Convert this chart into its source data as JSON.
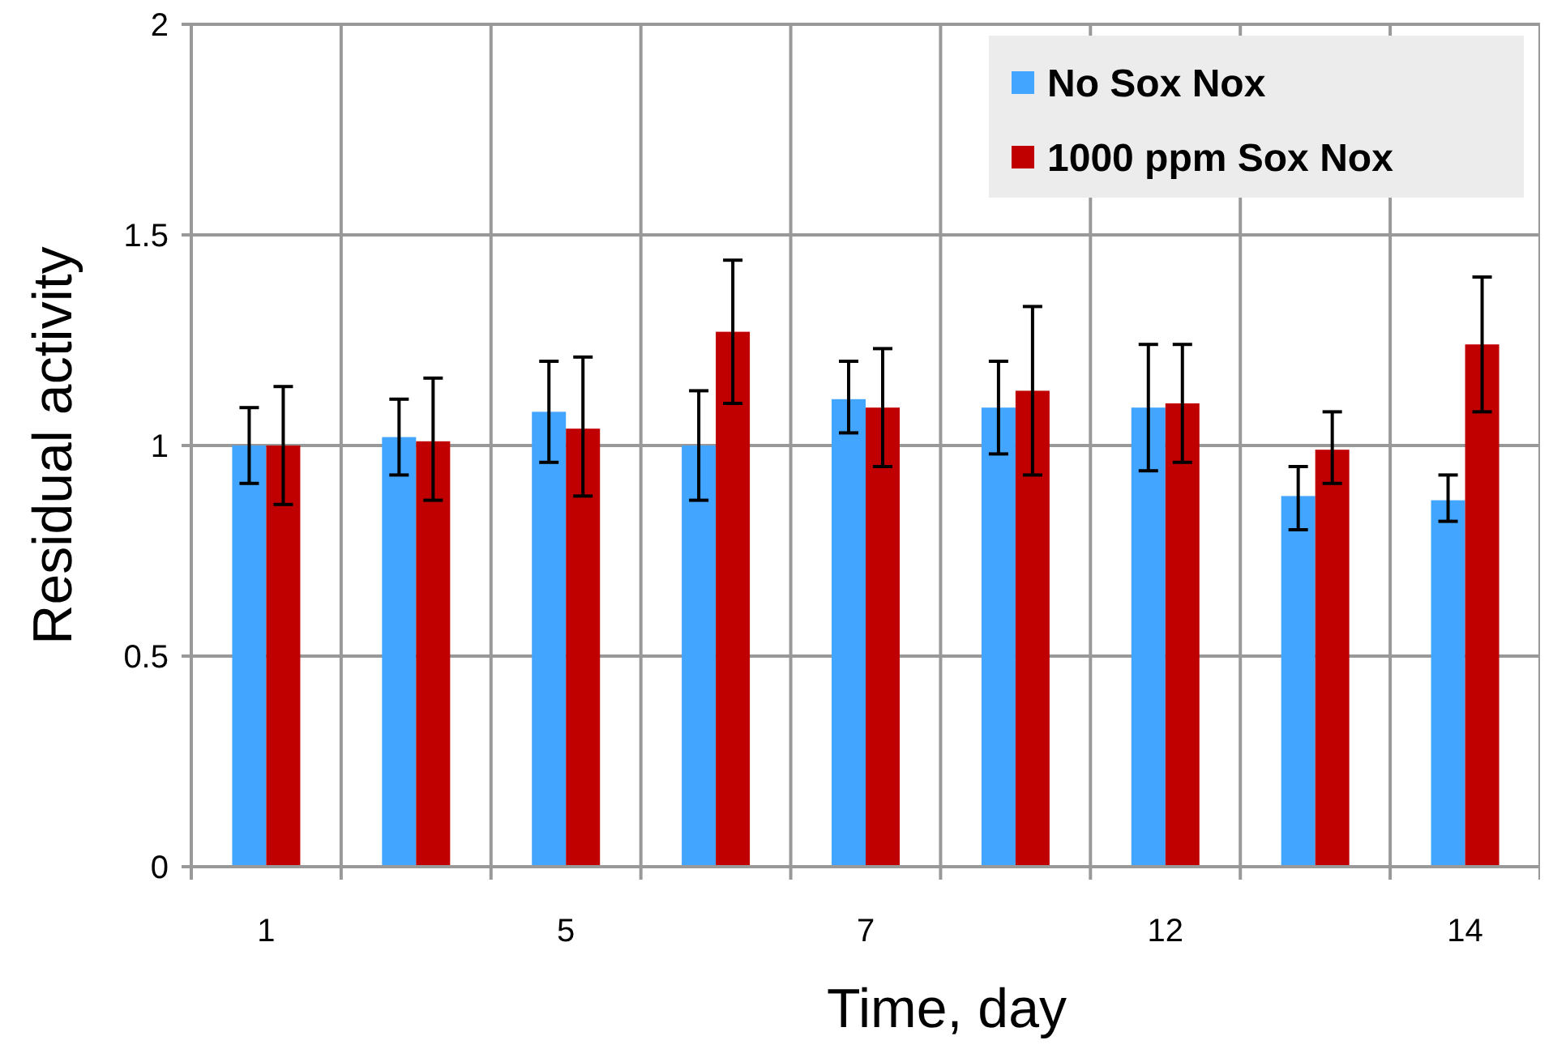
{
  "chart_data": {
    "type": "bar",
    "xlabel": "Time, day",
    "ylabel": "Residual activity",
    "categories": [
      "1",
      null,
      "5",
      null,
      "7",
      null,
      "12",
      null,
      "14"
    ],
    "series": [
      {
        "name": "No Sox Nox",
        "color": "#42a5ff",
        "values": [
          1.0,
          1.02,
          1.08,
          1.0,
          1.11,
          1.09,
          1.09,
          0.88,
          0.87
        ],
        "errors": [
          [
            0.91,
            1.09
          ],
          [
            0.93,
            1.11
          ],
          [
            0.96,
            1.2
          ],
          [
            0.87,
            1.13
          ],
          [
            1.03,
            1.2
          ],
          [
            0.98,
            1.2
          ],
          [
            0.94,
            1.24
          ],
          [
            0.8,
            0.95
          ],
          [
            0.82,
            0.93
          ]
        ]
      },
      {
        "name": "1000 ppm Sox Nox",
        "color": "#c00000",
        "values": [
          1.0,
          1.01,
          1.04,
          1.27,
          1.09,
          1.13,
          1.1,
          0.99,
          1.24
        ],
        "errors": [
          [
            0.86,
            1.14
          ],
          [
            0.87,
            1.16
          ],
          [
            0.88,
            1.21
          ],
          [
            1.1,
            1.44
          ],
          [
            0.95,
            1.23
          ],
          [
            0.93,
            1.33
          ],
          [
            0.96,
            1.24
          ],
          [
            0.91,
            1.08
          ],
          [
            1.08,
            1.4
          ]
        ]
      }
    ],
    "ylim": [
      0,
      2
    ],
    "yticks": [
      0,
      0.5,
      1,
      1.5,
      2
    ],
    "grid": true,
    "legend": "top right"
  }
}
